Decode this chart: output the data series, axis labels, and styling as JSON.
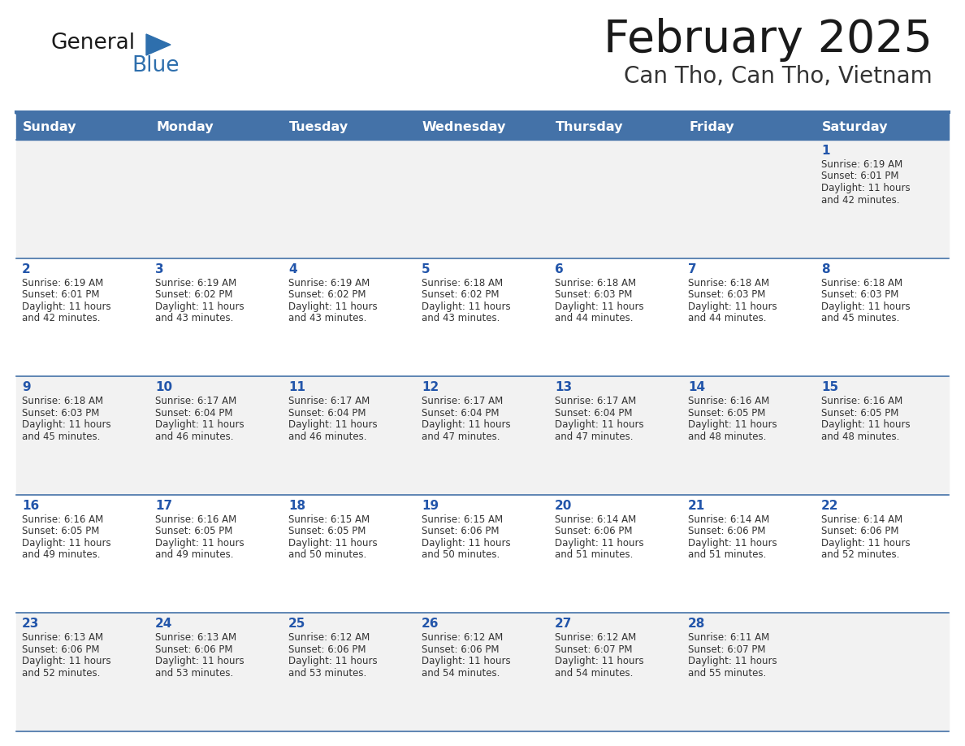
{
  "title": "February 2025",
  "subtitle": "Can Tho, Can Tho, Vietnam",
  "days_of_week": [
    "Sunday",
    "Monday",
    "Tuesday",
    "Wednesday",
    "Thursday",
    "Friday",
    "Saturday"
  ],
  "header_bg": "#4472a8",
  "header_text": "#ffffff",
  "row_bg_even": "#f2f2f2",
  "row_bg_odd": "#ffffff",
  "separator_color": "#4472a8",
  "title_color": "#1a1a1a",
  "subtitle_color": "#333333",
  "day_number_color": "#2255aa",
  "cell_text_color": "#333333",
  "calendar": [
    [
      null,
      null,
      null,
      null,
      null,
      null,
      {
        "day": 1,
        "sunrise": "6:19 AM",
        "sunset": "6:01 PM",
        "daylight": "11 hours",
        "daylight2": "and 42 minutes."
      }
    ],
    [
      {
        "day": 2,
        "sunrise": "6:19 AM",
        "sunset": "6:01 PM",
        "daylight": "11 hours",
        "daylight2": "and 42 minutes."
      },
      {
        "day": 3,
        "sunrise": "6:19 AM",
        "sunset": "6:02 PM",
        "daylight": "11 hours",
        "daylight2": "and 43 minutes."
      },
      {
        "day": 4,
        "sunrise": "6:19 AM",
        "sunset": "6:02 PM",
        "daylight": "11 hours",
        "daylight2": "and 43 minutes."
      },
      {
        "day": 5,
        "sunrise": "6:18 AM",
        "sunset": "6:02 PM",
        "daylight": "11 hours",
        "daylight2": "and 43 minutes."
      },
      {
        "day": 6,
        "sunrise": "6:18 AM",
        "sunset": "6:03 PM",
        "daylight": "11 hours",
        "daylight2": "and 44 minutes."
      },
      {
        "day": 7,
        "sunrise": "6:18 AM",
        "sunset": "6:03 PM",
        "daylight": "11 hours",
        "daylight2": "and 44 minutes."
      },
      {
        "day": 8,
        "sunrise": "6:18 AM",
        "sunset": "6:03 PM",
        "daylight": "11 hours",
        "daylight2": "and 45 minutes."
      }
    ],
    [
      {
        "day": 9,
        "sunrise": "6:18 AM",
        "sunset": "6:03 PM",
        "daylight": "11 hours",
        "daylight2": "and 45 minutes."
      },
      {
        "day": 10,
        "sunrise": "6:17 AM",
        "sunset": "6:04 PM",
        "daylight": "11 hours",
        "daylight2": "and 46 minutes."
      },
      {
        "day": 11,
        "sunrise": "6:17 AM",
        "sunset": "6:04 PM",
        "daylight": "11 hours",
        "daylight2": "and 46 minutes."
      },
      {
        "day": 12,
        "sunrise": "6:17 AM",
        "sunset": "6:04 PM",
        "daylight": "11 hours",
        "daylight2": "and 47 minutes."
      },
      {
        "day": 13,
        "sunrise": "6:17 AM",
        "sunset": "6:04 PM",
        "daylight": "11 hours",
        "daylight2": "and 47 minutes."
      },
      {
        "day": 14,
        "sunrise": "6:16 AM",
        "sunset": "6:05 PM",
        "daylight": "11 hours",
        "daylight2": "and 48 minutes."
      },
      {
        "day": 15,
        "sunrise": "6:16 AM",
        "sunset": "6:05 PM",
        "daylight": "11 hours",
        "daylight2": "and 48 minutes."
      }
    ],
    [
      {
        "day": 16,
        "sunrise": "6:16 AM",
        "sunset": "6:05 PM",
        "daylight": "11 hours",
        "daylight2": "and 49 minutes."
      },
      {
        "day": 17,
        "sunrise": "6:16 AM",
        "sunset": "6:05 PM",
        "daylight": "11 hours",
        "daylight2": "and 49 minutes."
      },
      {
        "day": 18,
        "sunrise": "6:15 AM",
        "sunset": "6:05 PM",
        "daylight": "11 hours",
        "daylight2": "and 50 minutes."
      },
      {
        "day": 19,
        "sunrise": "6:15 AM",
        "sunset": "6:06 PM",
        "daylight": "11 hours",
        "daylight2": "and 50 minutes."
      },
      {
        "day": 20,
        "sunrise": "6:14 AM",
        "sunset": "6:06 PM",
        "daylight": "11 hours",
        "daylight2": "and 51 minutes."
      },
      {
        "day": 21,
        "sunrise": "6:14 AM",
        "sunset": "6:06 PM",
        "daylight": "11 hours",
        "daylight2": "and 51 minutes."
      },
      {
        "day": 22,
        "sunrise": "6:14 AM",
        "sunset": "6:06 PM",
        "daylight": "11 hours",
        "daylight2": "and 52 minutes."
      }
    ],
    [
      {
        "day": 23,
        "sunrise": "6:13 AM",
        "sunset": "6:06 PM",
        "daylight": "11 hours",
        "daylight2": "and 52 minutes."
      },
      {
        "day": 24,
        "sunrise": "6:13 AM",
        "sunset": "6:06 PM",
        "daylight": "11 hours",
        "daylight2": "and 53 minutes."
      },
      {
        "day": 25,
        "sunrise": "6:12 AM",
        "sunset": "6:06 PM",
        "daylight": "11 hours",
        "daylight2": "and 53 minutes."
      },
      {
        "day": 26,
        "sunrise": "6:12 AM",
        "sunset": "6:06 PM",
        "daylight": "11 hours",
        "daylight2": "and 54 minutes."
      },
      {
        "day": 27,
        "sunrise": "6:12 AM",
        "sunset": "6:07 PM",
        "daylight": "11 hours",
        "daylight2": "and 54 minutes."
      },
      {
        "day": 28,
        "sunrise": "6:11 AM",
        "sunset": "6:07 PM",
        "daylight": "11 hours",
        "daylight2": "and 55 minutes."
      },
      null
    ]
  ],
  "fig_width": 11.88,
  "fig_height": 9.18,
  "dpi": 100
}
